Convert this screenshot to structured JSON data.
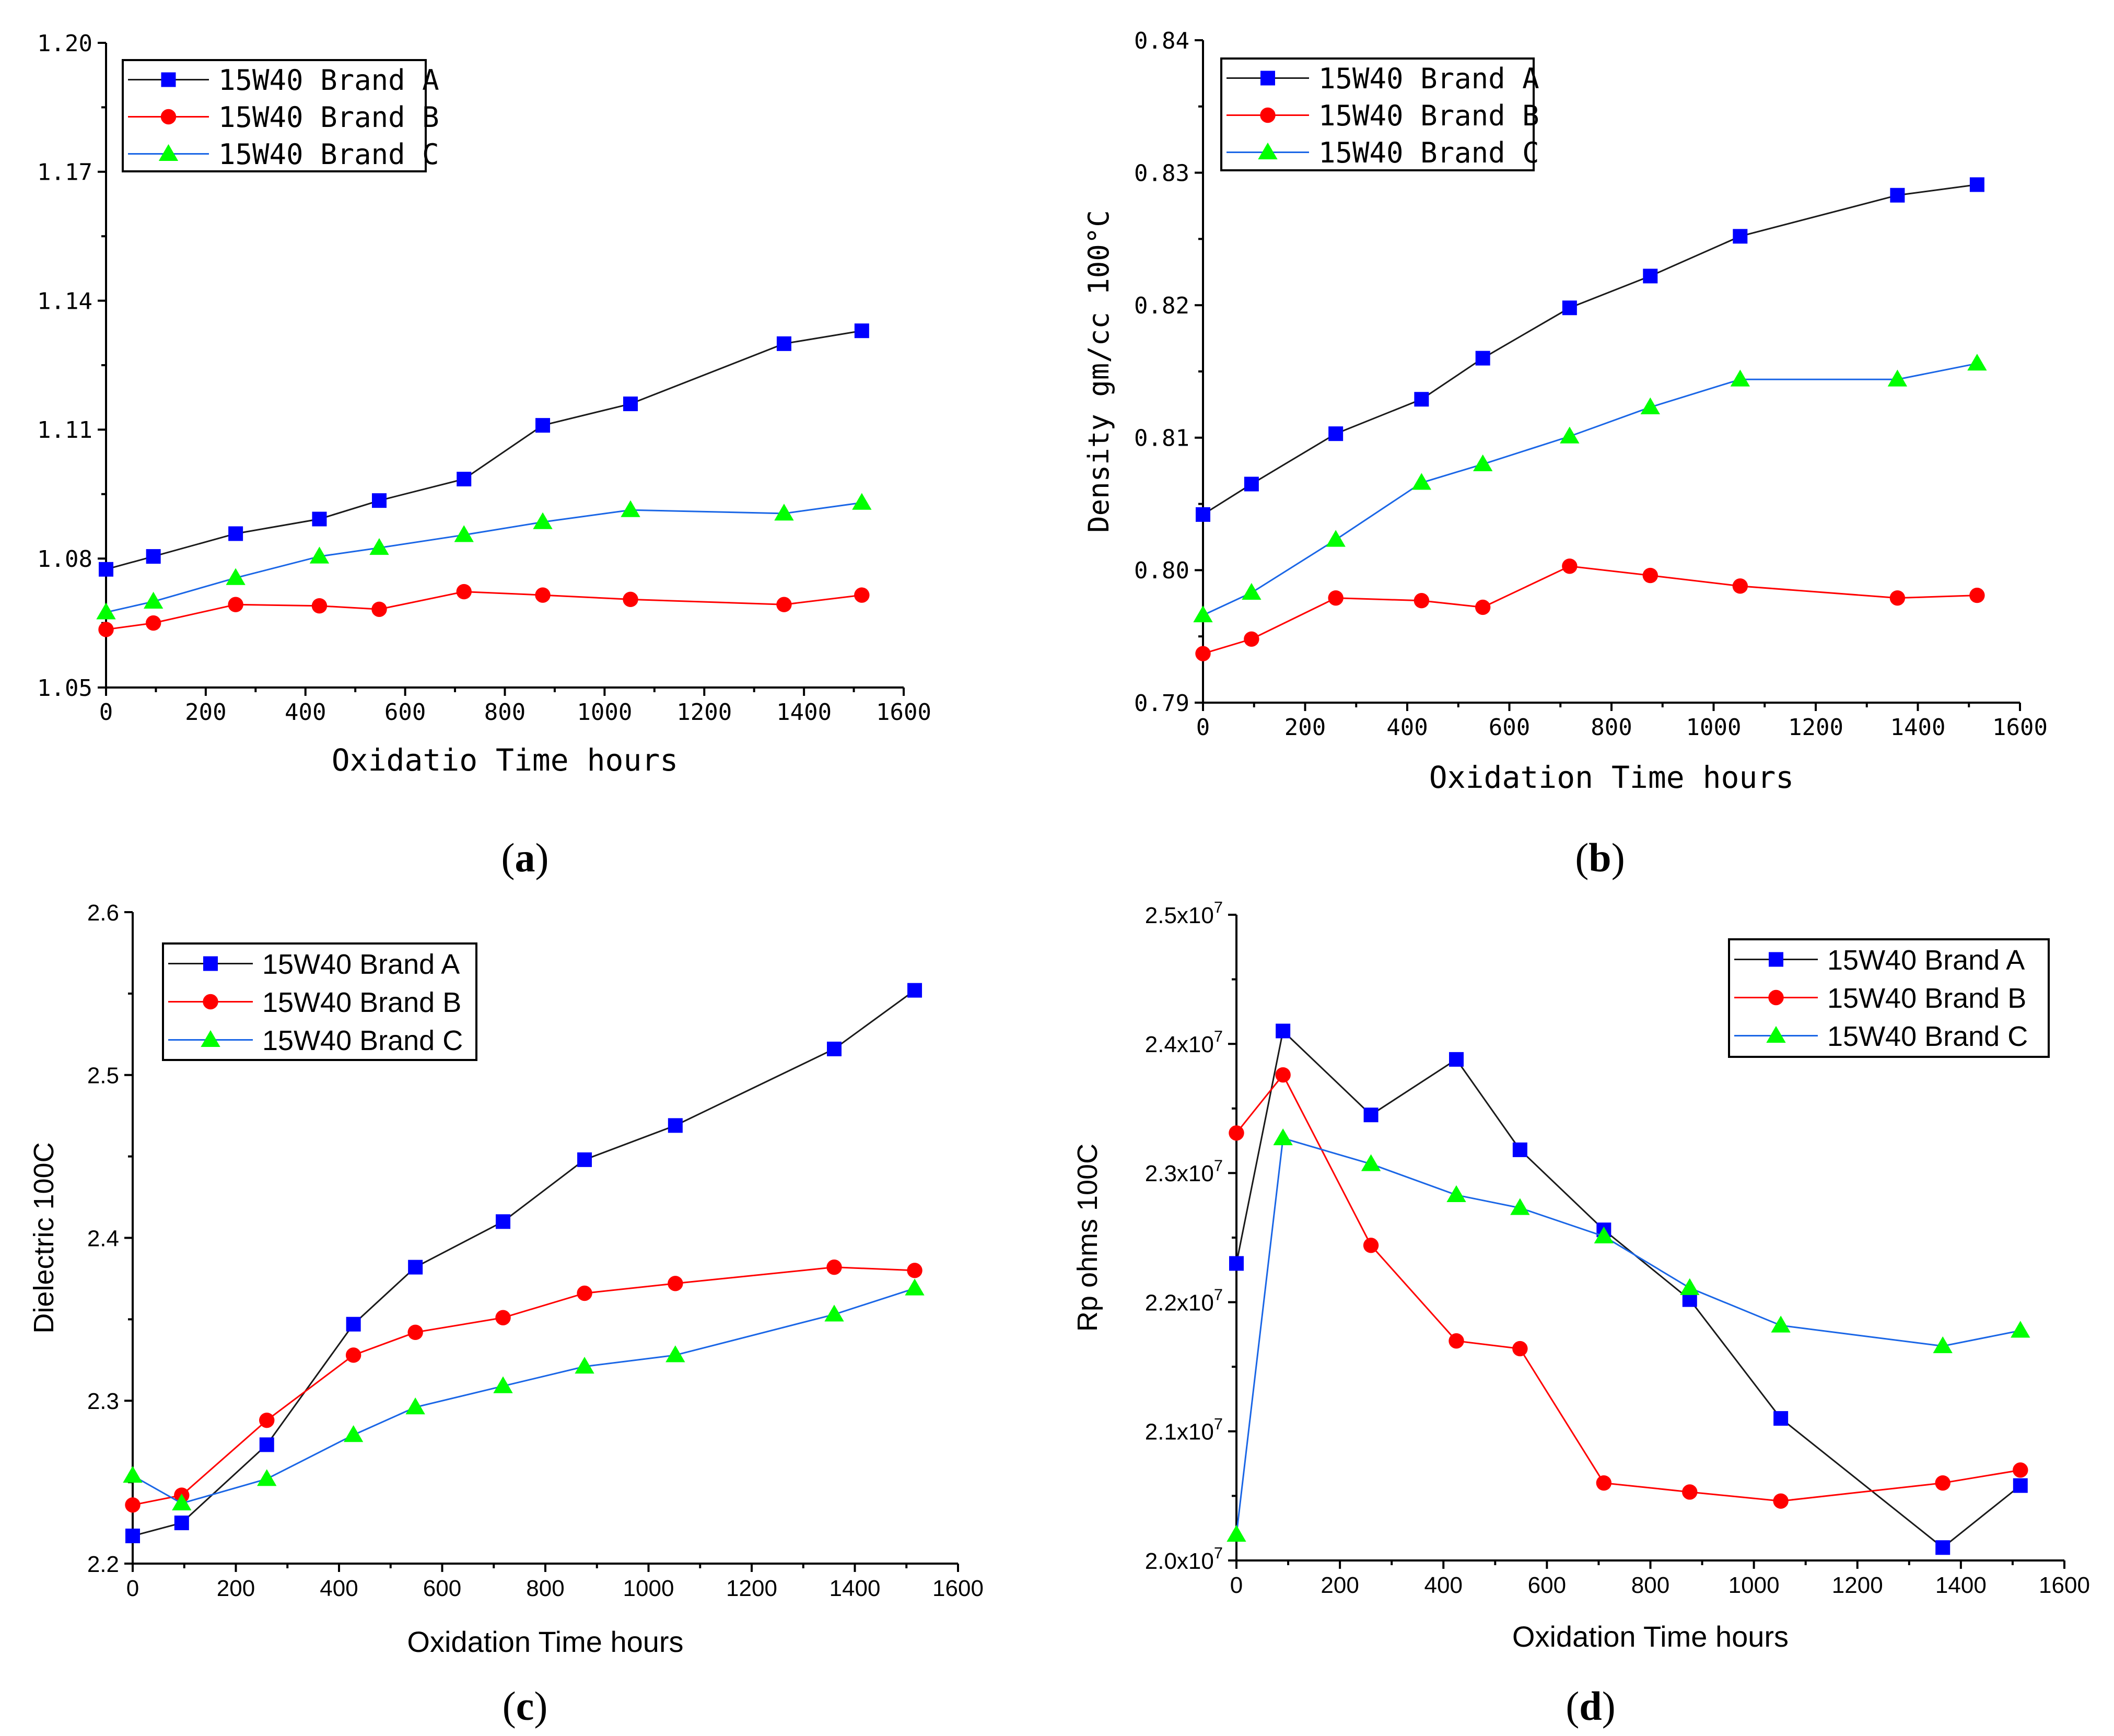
{
  "chart_data": [
    {
      "panel": "a",
      "panel_label": "(a)",
      "type": "line",
      "title": "",
      "xlabel": "Oxidatio Time hours",
      "ylabel": "",
      "xlim": [
        0,
        1600
      ],
      "ylim": [
        1.05,
        1.2
      ],
      "xticks": [
        0,
        200,
        400,
        600,
        800,
        1000,
        1200,
        1400,
        1600
      ],
      "xtick_labels": [
        "0",
        "200",
        "400",
        "600",
        "800",
        "1000",
        "1200",
        "1400",
        "1600"
      ],
      "yticks": [
        1.05,
        1.08,
        1.11,
        1.14,
        1.17,
        1.2
      ],
      "ytick_labels": [
        "1.05",
        "1.08",
        "1.11",
        "1.14",
        "1.17",
        "1.20"
      ],
      "legend": "top-left",
      "series": [
        {
          "name": "15W40 Brand A",
          "color": "#0000ff",
          "marker": "square",
          "x": [
            0,
            95,
            260,
            428,
            548,
            718,
            876,
            1052,
            1360,
            1516
          ],
          "y": [
            1.0775,
            1.0805,
            1.0858,
            1.0892,
            1.0935,
            1.0985,
            1.111,
            1.116,
            1.13,
            1.133
          ]
        },
        {
          "name": "15W40 Brand B",
          "color": "#ff0000",
          "marker": "circle",
          "x": [
            0,
            95,
            260,
            428,
            548,
            718,
            876,
            1052,
            1360,
            1516
          ],
          "y": [
            1.0635,
            1.065,
            1.0693,
            1.069,
            1.0682,
            1.0723,
            1.0715,
            1.0705,
            1.0693,
            1.0715
          ]
        },
        {
          "name": "15W40 Brand C",
          "color": "#00ff00",
          "marker": "triangle",
          "x": [
            0,
            95,
            260,
            428,
            548,
            718,
            876,
            1052,
            1360,
            1516
          ],
          "y": [
            1.0675,
            1.07,
            1.0755,
            1.0805,
            1.0825,
            1.0855,
            1.0885,
            1.0913,
            1.0905,
            1.093
          ]
        }
      ]
    },
    {
      "panel": "b",
      "panel_label": "(b)",
      "type": "line",
      "title": "",
      "xlabel": "Oxidation Time hours",
      "ylabel": "Density gm/cc 100°C",
      "xlim": [
        0,
        1600
      ],
      "ylim": [
        0.79,
        0.84
      ],
      "xticks": [
        0,
        200,
        400,
        600,
        800,
        1000,
        1200,
        1400,
        1600
      ],
      "xtick_labels": [
        "0",
        "200",
        "400",
        "600",
        "800",
        "1000",
        "1200",
        "1400",
        "1600"
      ],
      "yticks": [
        0.79,
        0.8,
        0.81,
        0.82,
        0.83,
        0.84
      ],
      "ytick_labels": [
        "0.79",
        "0.80",
        "0.81",
        "0.82",
        "0.83",
        "0.84"
      ],
      "legend": "top-left",
      "series": [
        {
          "name": "15W40 Brand A",
          "color": "#0000ff",
          "marker": "square",
          "x": [
            0,
            95,
            260,
            428,
            548,
            718,
            876,
            1052,
            1360,
            1516
          ],
          "y": [
            0.8042,
            0.8065,
            0.8103,
            0.8129,
            0.816,
            0.8198,
            0.8222,
            0.8252,
            0.8283,
            0.8291
          ]
        },
        {
          "name": "15W40 Brand B",
          "color": "#ff0000",
          "marker": "circle",
          "x": [
            0,
            95,
            260,
            428,
            548,
            718,
            876,
            1052,
            1360,
            1516
          ],
          "y": [
            0.7937,
            0.7948,
            0.7979,
            0.7977,
            0.7972,
            0.8003,
            0.7996,
            0.7988,
            0.7979,
            0.7981
          ]
        },
        {
          "name": "15W40 Brand C",
          "color": "#00ff00",
          "marker": "triangle",
          "x": [
            0,
            95,
            260,
            428,
            548,
            718,
            876,
            1052,
            1360,
            1516
          ],
          "y": [
            0.7966,
            0.7983,
            0.8023,
            0.8066,
            0.808,
            0.8101,
            0.8123,
            0.8144,
            0.8144,
            0.8156
          ]
        }
      ]
    },
    {
      "panel": "c",
      "panel_label": "(c)",
      "type": "line",
      "title": "",
      "xlabel": "Oxidation Time hours",
      "ylabel": "Dielectric 100C",
      "xlim": [
        0,
        1600
      ],
      "ylim": [
        2.2,
        2.6
      ],
      "xticks": [
        0,
        200,
        400,
        600,
        800,
        1000,
        1200,
        1400,
        1600
      ],
      "xtick_labels": [
        "0",
        "200",
        "400",
        "600",
        "800",
        "1000",
        "1200",
        "1400",
        "1600"
      ],
      "yticks": [
        2.2,
        2.3,
        2.4,
        2.5,
        2.6
      ],
      "ytick_labels": [
        "2.2",
        "2.3",
        "2.4",
        "2.5",
        "2.6"
      ],
      "legend": "top-left",
      "series": [
        {
          "name": "15W40 Brand A",
          "color": "#0000ff",
          "marker": "square",
          "x": [
            0,
            95,
            260,
            428,
            548,
            718,
            876,
            1052,
            1360,
            1516
          ],
          "y": [
            2.217,
            2.225,
            2.273,
            2.347,
            2.382,
            2.41,
            2.448,
            2.469,
            2.516,
            2.552
          ]
        },
        {
          "name": "15W40 Brand B",
          "color": "#ff0000",
          "marker": "circle",
          "x": [
            0,
            95,
            260,
            428,
            548,
            718,
            876,
            1052,
            1360,
            1516
          ],
          "y": [
            2.236,
            2.242,
            2.288,
            2.328,
            2.342,
            2.351,
            2.366,
            2.372,
            2.382,
            2.38
          ]
        },
        {
          "name": "15W40 Brand C",
          "color": "#00ff00",
          "marker": "triangle",
          "x": [
            0,
            95,
            260,
            428,
            548,
            718,
            876,
            1052,
            1360,
            1516
          ],
          "y": [
            2.254,
            2.237,
            2.252,
            2.279,
            2.296,
            2.309,
            2.321,
            2.328,
            2.353,
            2.369
          ]
        }
      ]
    },
    {
      "panel": "d",
      "panel_label": "(d)",
      "type": "line",
      "title": "",
      "xlabel": "Oxidation Time hours",
      "ylabel": "Rp ohms 100C",
      "xlim": [
        0,
        1600
      ],
      "ylim": [
        20000000,
        25000000
      ],
      "xticks": [
        0,
        200,
        400,
        600,
        800,
        1000,
        1200,
        1400,
        1600
      ],
      "xtick_labels": [
        "0",
        "200",
        "400",
        "600",
        "800",
        "1000",
        "1200",
        "1400",
        "1600"
      ],
      "yticks": [
        20000000,
        21000000,
        22000000,
        23000000,
        24000000,
        25000000
      ],
      "ytick_mantissas": [
        "2.0x10",
        "2.1x10",
        "2.2x10",
        "2.3x10",
        "2.4x10",
        "2.5x10"
      ],
      "ytick_exponent": "7",
      "legend": "top-right",
      "series": [
        {
          "name": "15W40 Brand A",
          "color": "#0000ff",
          "marker": "square",
          "x": [
            0,
            90,
            260,
            425,
            548,
            710,
            876,
            1052,
            1365,
            1515
          ],
          "y": [
            22300000,
            24100000,
            23450000,
            23880000,
            23180000,
            22560000,
            22020000,
            21100000,
            20100000,
            20580000
          ]
        },
        {
          "name": "15W40 Brand B",
          "color": "#ff0000",
          "marker": "circle",
          "x": [
            0,
            90,
            260,
            425,
            548,
            710,
            876,
            1052,
            1365,
            1515
          ],
          "y": [
            23310000,
            23760000,
            22440000,
            21700000,
            21640000,
            20600000,
            20530000,
            20460000,
            20600000,
            20700000
          ]
        },
        {
          "name": "15W40 Brand C",
          "color": "#00ff00",
          "marker": "triangle",
          "x": [
            0,
            90,
            260,
            425,
            548,
            710,
            876,
            1052,
            1365,
            1515
          ],
          "y": [
            20200000,
            23270000,
            23070000,
            22830000,
            22730000,
            22510000,
            22110000,
            21820000,
            21660000,
            21780000
          ]
        }
      ]
    }
  ]
}
